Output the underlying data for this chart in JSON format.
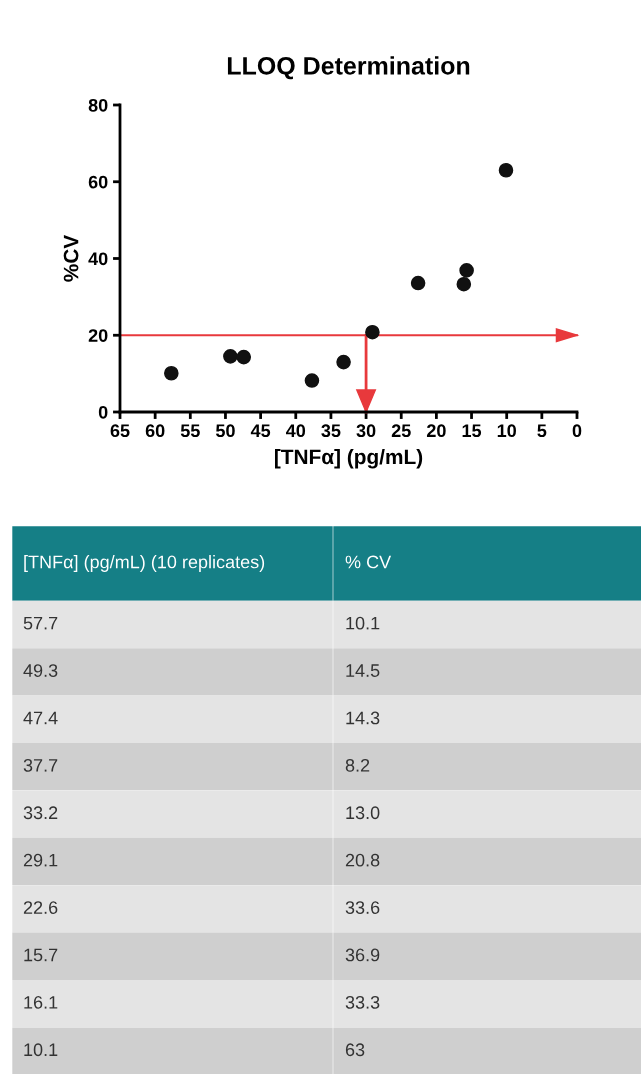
{
  "chart_data": [
    {
      "type": "scatter",
      "title": "LLOQ Determination",
      "xlabel": "[TNFα] (pg/mL)",
      "ylabel": "%CV",
      "x": [
        57.7,
        49.3,
        47.4,
        37.7,
        33.2,
        29.1,
        22.6,
        15.7,
        16.1,
        10.1
      ],
      "values": [
        10.1,
        14.5,
        14.3,
        8.2,
        13.0,
        20.8,
        33.6,
        36.9,
        33.3,
        63
      ],
      "color": "#111111",
      "marker": "circle",
      "xlim": [
        65,
        0
      ],
      "xticks": [
        65,
        60,
        55,
        50,
        45,
        40,
        35,
        30,
        25,
        20,
        15,
        10,
        5,
        0
      ],
      "ylim": [
        0,
        80
      ],
      "yticks": [
        0,
        20,
        40,
        60,
        80
      ],
      "ref_lines": [
        {
          "axis": "y",
          "value": 20,
          "color": "#e8393c"
        },
        {
          "axis": "x",
          "value": 30,
          "color": "#e8393c"
        }
      ],
      "grid": false
    },
    {
      "type": "other",
      "annotations": [
        "[TNFα] (pg/mL) (10 replicates)",
        "% CV",
        "57.7",
        "10.1",
        "49.3",
        "14.5",
        "47.4",
        "14.3",
        "37.7",
        "8.2",
        "33.2",
        "13.0",
        "29.1",
        "20.8",
        "22.6",
        "33.6",
        "15.7",
        "36.9",
        "16.1",
        "33.3",
        "10.1",
        "63"
      ]
    }
  ]
}
